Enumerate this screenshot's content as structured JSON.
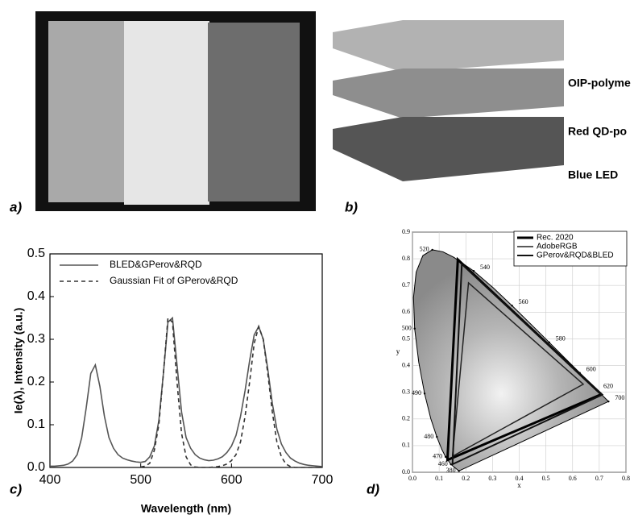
{
  "panel_labels": [
    "a)",
    "b)",
    "c)",
    "d)"
  ],
  "diagram": {
    "layers": [
      "OIP-polyme",
      "Red QD-po",
      "Blue LED"
    ]
  },
  "chart_data": [
    {
      "type": "line",
      "x_label": "Wavelength (nm)",
      "y_label": "Ie(λ), Intensity (a.u.)",
      "xlim": [
        400,
        700
      ],
      "xticks": [
        400,
        500,
        600,
        700
      ],
      "ylim": [
        0,
        0.5
      ],
      "yticks": [
        {
          "value": 0,
          "label": "0.0"
        },
        0.1,
        0.2,
        0.3,
        0.4,
        0.5
      ],
      "x": [
        400,
        405,
        410,
        415,
        420,
        425,
        430,
        435,
        440,
        445,
        450,
        455,
        460,
        465,
        470,
        475,
        480,
        485,
        490,
        495,
        500,
        505,
        510,
        515,
        520,
        525,
        530,
        535,
        540,
        545,
        550,
        555,
        560,
        565,
        570,
        575,
        580,
        585,
        590,
        595,
        600,
        605,
        610,
        615,
        620,
        625,
        630,
        635,
        640,
        645,
        650,
        655,
        660,
        665,
        670,
        675,
        680,
        685,
        690,
        695,
        700
      ],
      "series": [
        {
          "name": "BLED&GPerov&RQD",
          "color": "#555555",
          "dash": false,
          "values": [
            0.003,
            0.003,
            0.004,
            0.005,
            0.008,
            0.015,
            0.03,
            0.07,
            0.14,
            0.22,
            0.24,
            0.19,
            0.12,
            0.07,
            0.045,
            0.03,
            0.022,
            0.018,
            0.015,
            0.013,
            0.012,
            0.014,
            0.025,
            0.05,
            0.11,
            0.22,
            0.34,
            0.35,
            0.24,
            0.13,
            0.07,
            0.045,
            0.03,
            0.022,
            0.018,
            0.016,
            0.017,
            0.02,
            0.025,
            0.035,
            0.05,
            0.075,
            0.12,
            0.18,
            0.25,
            0.31,
            0.33,
            0.3,
            0.23,
            0.15,
            0.09,
            0.055,
            0.035,
            0.022,
            0.015,
            0.01,
            0.007,
            0.005,
            0.004,
            0.003,
            0.002
          ]
        },
        {
          "name": "Gaussian Fit of GPerov&RQD",
          "color": "#333333",
          "dash": true,
          "values": [
            null,
            null,
            null,
            null,
            null,
            null,
            null,
            null,
            null,
            null,
            null,
            null,
            null,
            null,
            null,
            null,
            null,
            null,
            null,
            null,
            0.001,
            0.003,
            0.01,
            0.04,
            0.1,
            0.22,
            0.35,
            0.34,
            0.2,
            0.08,
            0.025,
            0.006,
            0.001,
            0,
            0,
            0,
            0.001,
            0.002,
            0.004,
            0.008,
            0.016,
            0.03,
            0.06,
            0.12,
            0.2,
            0.29,
            0.33,
            0.3,
            0.22,
            0.13,
            0.06,
            0.025,
            0.008,
            0.002,
            0,
            0,
            0,
            0,
            0,
            0,
            0
          ]
        }
      ]
    },
    {
      "type": "chromaticity",
      "x_label": "x",
      "y_label": "y",
      "grid": true,
      "xlim": [
        0,
        0.8
      ],
      "xticks": [
        {
          "value": 0,
          "label": "0.0"
        },
        0.1,
        0.2,
        0.3,
        0.4,
        0.5,
        0.6,
        0.7,
        0.8
      ],
      "ylim": [
        0,
        0.9
      ],
      "yticks": [
        {
          "value": 0,
          "label": "0.0"
        },
        0.1,
        0.2,
        0.3,
        0.4,
        0.5,
        0.6,
        0.7,
        0.8,
        0.9
      ],
      "spectral_locus": {
        "x": [
          0.1741,
          0.144,
          0.1241,
          0.1096,
          0.0913,
          0.0687,
          0.0454,
          0.0235,
          0.0082,
          0.0039,
          0.0139,
          0.0389,
          0.0743,
          0.1142,
          0.1547,
          0.2296,
          0.3016,
          0.3731,
          0.4441,
          0.5125,
          0.5752,
          0.627,
          0.6658,
          0.6915,
          0.719,
          0.7347
        ],
        "y": [
          0.005,
          0.0297,
          0.0578,
          0.0868,
          0.1327,
          0.2007,
          0.295,
          0.4127,
          0.5384,
          0.6548,
          0.7502,
          0.812,
          0.8338,
          0.8262,
          0.8059,
          0.7543,
          0.6923,
          0.6245,
          0.5547,
          0.4866,
          0.4242,
          0.3725,
          0.334,
          0.3083,
          0.2809,
          0.2653
        ]
      },
      "wavelength_labels": [
        {
          "label": "520",
          "x": 0.0743,
          "y": 0.8338
        },
        {
          "label": "540",
          "x": 0.2296,
          "y": 0.7543
        },
        {
          "label": "560",
          "x": 0.3731,
          "y": 0.6245
        },
        {
          "label": "580",
          "x": 0.5125,
          "y": 0.4866
        },
        {
          "label": "600",
          "x": 0.627,
          "y": 0.3725
        },
        {
          "label": "620",
          "x": 0.6915,
          "y": 0.3083
        },
        {
          "label": "700",
          "x": 0.7347,
          "y": 0.2653
        },
        {
          "label": "500",
          "x": 0.0082,
          "y": 0.5384
        },
        {
          "label": "490",
          "x": 0.0454,
          "y": 0.295
        },
        {
          "label": "480",
          "x": 0.0913,
          "y": 0.1327
        },
        {
          "label": "470",
          "x": 0.1241,
          "y": 0.0578
        },
        {
          "label": "460",
          "x": 0.144,
          "y": 0.0297
        },
        {
          "label": "380",
          "x": 0.1741,
          "y": 0.005
        }
      ],
      "series": [
        {
          "name": "Rec. 2020",
          "color": "#000000",
          "width": 3,
          "x": [
            0.708,
            0.17,
            0.131
          ],
          "y": [
            0.292,
            0.797,
            0.046
          ]
        },
        {
          "name": "AdobeRGB",
          "color": "#222222",
          "width": 1.5,
          "x": [
            0.64,
            0.21,
            0.15
          ],
          "y": [
            0.33,
            0.71,
            0.06
          ]
        },
        {
          "name": "GPerov&RQD&BLED",
          "color": "#111111",
          "width": 2,
          "x": [
            0.71,
            0.185,
            0.15
          ],
          "y": [
            0.29,
            0.78,
            0.03
          ]
        }
      ]
    }
  ]
}
